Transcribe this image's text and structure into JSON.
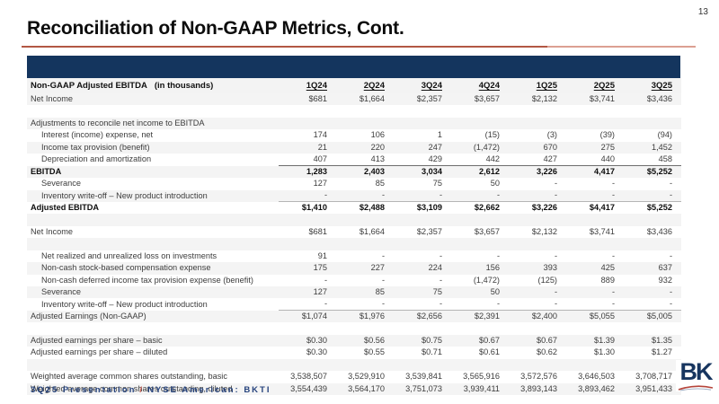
{
  "page": {
    "number": "13",
    "title": "Reconciliation of Non-GAAP Metrics, Cont."
  },
  "table": {
    "header": {
      "label": "Non-GAAP Adjusted EBITDA",
      "unit_note": "(in thousands)",
      "columns": [
        "1Q24",
        "2Q24",
        "3Q24",
        "4Q24",
        "1Q25",
        "2Q25",
        "3Q25"
      ]
    },
    "rows": [
      {
        "label": "Net Income",
        "values": [
          "$681",
          "$1,664",
          "$2,357",
          "$3,657",
          "$2,132",
          "$3,741",
          "$3,436"
        ]
      },
      {
        "blank": true
      },
      {
        "label": "Adjustments to reconcile net income to EBITDA",
        "values": [
          "",
          "",
          "",
          "",
          "",
          "",
          ""
        ]
      },
      {
        "label": "Interest (income) expense, net",
        "indent": 1,
        "values": [
          "174",
          "106",
          "1",
          "(15)",
          "(3)",
          "(39)",
          "(94)"
        ]
      },
      {
        "label": "Income tax provision (benefit)",
        "indent": 1,
        "values": [
          "21",
          "220",
          "247",
          "(1,472)",
          "670",
          "275",
          "1,452"
        ]
      },
      {
        "label": "Depreciation and amortization",
        "indent": 1,
        "rule": "dark",
        "values": [
          "407",
          "413",
          "429",
          "442",
          "427",
          "440",
          "458"
        ]
      },
      {
        "label": "EBITDA",
        "bold": true,
        "values": [
          "1,283",
          "2,403",
          "3,034",
          "2,612",
          "3,226",
          "4,417",
          "$5,252"
        ]
      },
      {
        "label": "Severance",
        "indent": 1,
        "values": [
          "127",
          "85",
          "75",
          "50",
          "-",
          "-",
          "-"
        ]
      },
      {
        "label": "Inventory write-off – New product introduction",
        "indent": 1,
        "rule": "light",
        "values": [
          "-",
          "-",
          "-",
          "-",
          "-",
          "-",
          "-"
        ]
      },
      {
        "label": "Adjusted EBITDA",
        "bold": true,
        "values": [
          "$1,410",
          "$2,488",
          "$3,109",
          "$2,662",
          "$3,226",
          "$4,417",
          "$5,252"
        ]
      },
      {
        "blank": true
      },
      {
        "label": "Net Income",
        "values": [
          "$681",
          "$1,664",
          "$2,357",
          "$3,657",
          "$2,132",
          "$3,741",
          "$3,436"
        ]
      },
      {
        "blank": true
      },
      {
        "label": "Net realized and unrealized loss on investments",
        "indent": 1,
        "values": [
          "91",
          "-",
          "-",
          "-",
          "-",
          "-",
          "-"
        ]
      },
      {
        "label": "Non-cash stock-based compensation expense",
        "indent": 1,
        "values": [
          "175",
          "227",
          "224",
          "156",
          "393",
          "425",
          "637"
        ]
      },
      {
        "label": "Non-cash deferred income tax provision expense (benefit)",
        "indent": 1,
        "values": [
          "-",
          "-",
          "-",
          "(1,472)",
          "(125)",
          "889",
          "932"
        ]
      },
      {
        "label": "Severance",
        "indent": 1,
        "values": [
          "127",
          "85",
          "75",
          "50",
          "-",
          "-",
          "-"
        ]
      },
      {
        "label": "Inventory write-off – New product introduction",
        "indent": 1,
        "rule": "light",
        "values": [
          "-",
          "-",
          "-",
          "-",
          "-",
          "-",
          "-"
        ]
      },
      {
        "label": "Adjusted Earnings (Non-GAAP)",
        "values": [
          "$1,074",
          "$1,976",
          "$2,656",
          "$2,391",
          "$2,400",
          "$5,055",
          "$5,005"
        ]
      },
      {
        "blank": true
      },
      {
        "label": "Adjusted earnings per share – basic",
        "values": [
          "$0.30",
          "$0.56",
          "$0.75",
          "$0.67",
          "$0.67",
          "$1.39",
          "$1.35"
        ]
      },
      {
        "label": "Adjusted earnings per share – diluted",
        "values": [
          "$0.30",
          "$0.55",
          "$0.71",
          "$0.61",
          "$0.62",
          "$1.30",
          "$1.27"
        ]
      },
      {
        "blank": true
      },
      {
        "label": "Weighted average common shares outstanding, basic",
        "values": [
          "3,538,507",
          "3,529,910",
          "3,539,841",
          "3,565,916",
          "3,572,576",
          "3,646,503",
          "3,708,717"
        ]
      },
      {
        "label": "Weighted average common shares outstanding, diluted",
        "values": [
          "3,554,439",
          "3,564,170",
          "3,751,073",
          "3,939,411",
          "3,893,143",
          "3,893,462",
          "3,951,433"
        ]
      }
    ]
  },
  "footer": {
    "left_text": "3Q25 Presentation",
    "slash": "/",
    "right_text": "NYSE American: BKTI"
  },
  "logo": {
    "text": "BK"
  },
  "colors": {
    "band_navy": "#14355E",
    "title_rule_red": "#B25744",
    "title_rule_red_light": "#DCA092",
    "row_stripe": "#F4F4F4",
    "footer_navy": "#27447E",
    "slash_red": "#C4554A",
    "logo_navy": "#17355F",
    "logo_swoosh_red": "#B5443A"
  }
}
